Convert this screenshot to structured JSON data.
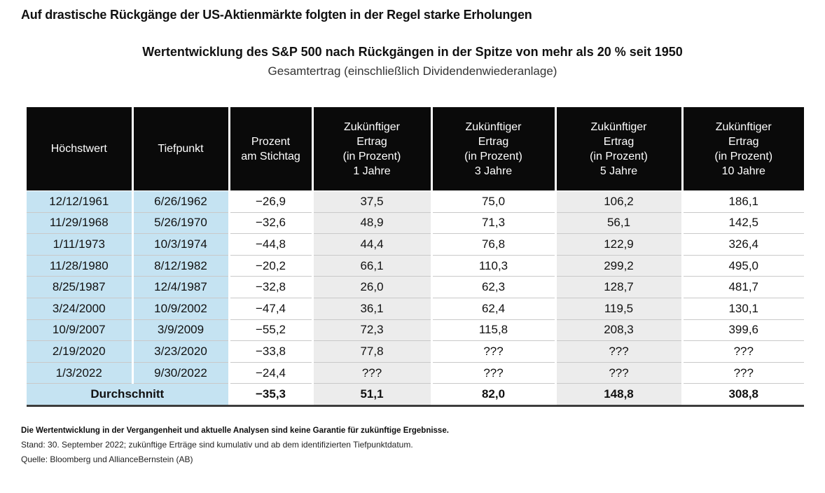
{
  "header": {
    "title": "Auf drastische Rückgänge der US-Aktienmärkte folgten in der Regel starke Erholungen",
    "subtitle": "Wertentwicklung des S&P 500 nach Rückgängen in der Spitze von mehr als 20 % seit 1950",
    "subtitle_note": "Gesamtertrag (einschließlich Dividendenwiederanlage)"
  },
  "chart_data": {
    "type": "table",
    "title": "Wertentwicklung des S&P 500 nach Rückgängen in der Spitze von mehr als 20 % seit 1950",
    "columns": [
      "Höchstwert",
      "Tiefpunkt",
      "Prozent\nam Stichtag",
      "Zukünftiger\nErtrag\n(in Prozent)\n1 Jahre",
      "Zukünftiger\nErtrag\n(in Prozent)\n3 Jahre",
      "Zukünftiger\nErtrag\n(in Prozent)\n5 Jahre",
      "Zukünftiger\nErtrag\n(in Prozent)\n10 Jahre"
    ],
    "rows": [
      [
        "12/12/1961",
        "6/26/1962",
        "−26,9",
        "37,5",
        "75,0",
        "106,2",
        "186,1"
      ],
      [
        "11/29/1968",
        "5/26/1970",
        "−32,6",
        "48,9",
        "71,3",
        "56,1",
        "142,5"
      ],
      [
        "1/11/1973",
        "10/3/1974",
        "−44,8",
        "44,4",
        "76,8",
        "122,9",
        "326,4"
      ],
      [
        "11/28/1980",
        "8/12/1982",
        "−20,2",
        "66,1",
        "110,3",
        "299,2",
        "495,0"
      ],
      [
        "8/25/1987",
        "12/4/1987",
        "−32,8",
        "26,0",
        "62,3",
        "128,7",
        "481,7"
      ],
      [
        "3/24/2000",
        "10/9/2002",
        "−47,4",
        "36,1",
        "62,4",
        "119,5",
        "130,1"
      ],
      [
        "10/9/2007",
        "3/9/2009",
        "−55,2",
        "72,3",
        "115,8",
        "208,3",
        "399,6"
      ],
      [
        "2/19/2020",
        "3/23/2020",
        "−33,8",
        "77,8",
        "???",
        "???",
        "???"
      ],
      [
        "1/3/2022",
        "9/30/2022",
        "−24,4",
        "???",
        "???",
        "???",
        "???"
      ]
    ],
    "average": {
      "label": "Durchschnitt",
      "values": [
        "−35,3",
        "51,1",
        "82,0",
        "148,8",
        "308,8"
      ]
    }
  },
  "footnotes": {
    "disclaimer": "Die Wertentwicklung in der Vergangenheit und aktuelle Analysen sind keine Garantie für zukünftige Ergebnisse.",
    "as_of": "Stand: 30. September 2022; zukünftige Erträge sind kumulativ und ab dem identifizierten Tiefpunktdatum.",
    "source": "Quelle: Bloomberg und AllianceBernstein (AB)"
  },
  "colors": {
    "header_bg": "#0a0a0a",
    "date_column_bg": "#c5e3f2",
    "stripe_column_bg": "#ececec",
    "bottom_rule": "#3d3d3d"
  }
}
